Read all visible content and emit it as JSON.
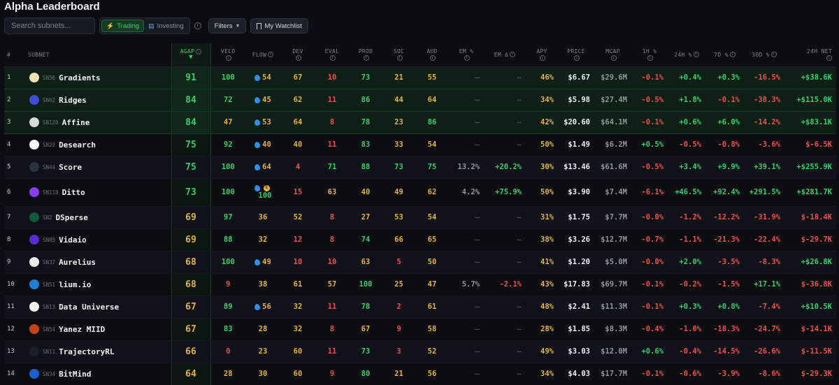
{
  "page": {
    "title": "Alpha Leaderboard"
  },
  "toolbar": {
    "search_placeholder": "Search subnets...",
    "trading_label": "Trading",
    "investing_label": "Investing",
    "filters_label": "Filters",
    "watchlist_label": "My Watchlist"
  },
  "colors": {
    "accent_green": "#2fd06a",
    "warning_yellow": "#e7b13a",
    "negative_red": "#ef4d4d",
    "background": "#0b0d11"
  },
  "columns": [
    "#",
    "SUBNET",
    "AGAP",
    "VELO",
    "FLOW",
    "DEV",
    "EVAL",
    "PROD",
    "SOC",
    "AUD",
    "EM %",
    "EM Δ",
    "APY",
    "PRICE",
    "MCAP",
    "1H %",
    "24H %",
    "7D %",
    "30D %",
    "24H NET"
  ],
  "rows": [
    {
      "rank": "1",
      "sn": "SN56",
      "name": "Gradients",
      "logo_color": "#f4e3b2",
      "agap": "91",
      "velo": "100",
      "flow": "54",
      "dev": "67",
      "eval": "10",
      "prod": "73",
      "soc": "21",
      "aud": "55",
      "em": "—",
      "emd": "—",
      "apy": "46%",
      "price": "$6.67",
      "mcap": "$29.6M",
      "h1": "-0.1%",
      "h24": "+0.4%",
      "d7": "+0.3%",
      "d30": "-16.5%",
      "net": "+$38.6K"
    },
    {
      "rank": "2",
      "sn": "SN62",
      "name": "Ridges",
      "logo_color": "#3b4fd8",
      "agap": "84",
      "velo": "72",
      "flow": "45",
      "dev": "62",
      "eval": "11",
      "prod": "86",
      "soc": "44",
      "aud": "64",
      "em": "—",
      "emd": "—",
      "apy": "34%",
      "price": "$5.98",
      "mcap": "$27.4M",
      "h1": "-0.5%",
      "h24": "+1.8%",
      "d7": "-0.1%",
      "d30": "-38.3%",
      "net": "+$115.0K"
    },
    {
      "rank": "3",
      "sn": "SN120",
      "name": "Affine",
      "logo_color": "#d9d9d9",
      "agap": "84",
      "velo": "47",
      "flow": "53",
      "dev": "64",
      "eval": "8",
      "prod": "78",
      "soc": "23",
      "aud": "86",
      "em": "—",
      "emd": "—",
      "apy": "42%",
      "price": "$20.60",
      "mcap": "$64.1M",
      "h1": "-0.1%",
      "h24": "+0.6%",
      "d7": "+6.0%",
      "d30": "-14.2%",
      "net": "+$83.1K"
    },
    {
      "rank": "4",
      "sn": "SN22",
      "name": "Desearch",
      "logo_color": "#ffffff",
      "agap": "75",
      "velo": "92",
      "flow": "40",
      "dev": "40",
      "eval": "11",
      "prod": "83",
      "soc": "33",
      "aud": "54",
      "em": "—",
      "emd": "—",
      "apy": "50%",
      "price": "$1.49",
      "mcap": "$6.2M",
      "h1": "+0.5%",
      "h24": "-0.5%",
      "d7": "-0.8%",
      "d30": "-3.6%",
      "net": "$-6.5K"
    },
    {
      "rank": "5",
      "sn": "SN44",
      "name": "Score",
      "logo_color": "#2b3340",
      "agap": "75",
      "velo": "100",
      "flow": "64",
      "dev": "4",
      "eval": "71",
      "prod": "88",
      "soc": "73",
      "aud": "75",
      "em": "13.2%",
      "emd": "+20.2%",
      "apy": "30%",
      "price": "$13.46",
      "mcap": "$61.6M",
      "h1": "-0.5%",
      "h24": "+3.4%",
      "d7": "+9.9%",
      "d30": "+39.1%",
      "net": "+$255.9K"
    },
    {
      "rank": "6",
      "sn": "SN118",
      "name": "Ditto",
      "logo_color": "#8a3df0",
      "agap": "73",
      "velo": "100",
      "flow": "100",
      "dev": "15",
      "eval": "63",
      "prod": "40",
      "soc": "49",
      "aud": "62",
      "em": "4.2%",
      "emd": "+75.9%",
      "apy": "50%",
      "price": "$3.90",
      "mcap": "$7.4M",
      "h1": "-6.1%",
      "h24": "+46.5%",
      "d7": "+92.4%",
      "d30": "+291.5%",
      "net": "+$281.7K"
    },
    {
      "rank": "7",
      "sn": "SN2",
      "name": "DSperse",
      "logo_color": "#0f5a3a",
      "agap": "69",
      "velo": "97",
      "flow": "36",
      "dev": "52",
      "eval": "8",
      "prod": "27",
      "soc": "53",
      "aud": "54",
      "em": "—",
      "emd": "—",
      "apy": "31%",
      "price": "$1.75",
      "mcap": "$7.7M",
      "h1": "-0.0%",
      "h24": "-1.2%",
      "d7": "-12.2%",
      "d30": "-31.9%",
      "net": "$-18.4K"
    },
    {
      "rank": "8",
      "sn": "SN85",
      "name": "Vidaio",
      "logo_color": "#5b2bd6",
      "agap": "69",
      "velo": "88",
      "flow": "32",
      "dev": "12",
      "eval": "8",
      "prod": "74",
      "soc": "66",
      "aud": "65",
      "em": "—",
      "emd": "—",
      "apy": "38%",
      "price": "$3.26",
      "mcap": "$12.7M",
      "h1": "-0.7%",
      "h24": "-1.1%",
      "d7": "-21.3%",
      "d30": "-22.4%",
      "net": "$-29.7K"
    },
    {
      "rank": "9",
      "sn": "SN37",
      "name": "Aurelius",
      "logo_color": "#eaeaea",
      "agap": "68",
      "velo": "100",
      "flow": "49",
      "dev": "10",
      "eval": "10",
      "prod": "63",
      "soc": "5",
      "aud": "50",
      "em": "—",
      "emd": "—",
      "apy": "41%",
      "price": "$1.20",
      "mcap": "$5.0M",
      "h1": "-0.0%",
      "h24": "+2.0%",
      "d7": "-3.5%",
      "d30": "-8.3%",
      "net": "+$26.8K"
    },
    {
      "rank": "10",
      "sn": "SN51",
      "name": "lium.io",
      "logo_color": "#1e7fd6",
      "agap": "68",
      "velo": "9",
      "flow": "38",
      "dev": "61",
      "eval": "57",
      "prod": "100",
      "soc": "25",
      "aud": "47",
      "em": "5.7%",
      "emd": "-2.1%",
      "apy": "43%",
      "price": "$17.83",
      "mcap": "$69.7M",
      "h1": "-0.1%",
      "h24": "-0.2%",
      "d7": "-1.5%",
      "d30": "+17.1%",
      "net": "$-36.8K"
    },
    {
      "rank": "11",
      "sn": "SN13",
      "name": "Data Universe",
      "logo_color": "#f3f3f3",
      "agap": "67",
      "velo": "89",
      "flow": "56",
      "dev": "32",
      "eval": "11",
      "prod": "78",
      "soc": "2",
      "aud": "61",
      "em": "—",
      "emd": "—",
      "apy": "48%",
      "price": "$2.41",
      "mcap": "$11.3M",
      "h1": "-0.1%",
      "h24": "+0.3%",
      "d7": "+0.8%",
      "d30": "-7.4%",
      "net": "+$10.5K"
    },
    {
      "rank": "12",
      "sn": "SN54",
      "name": "Yanez MIID",
      "logo_color": "#c4431b",
      "agap": "67",
      "velo": "83",
      "flow": "28",
      "dev": "32",
      "eval": "8",
      "prod": "67",
      "soc": "9",
      "aud": "58",
      "em": "—",
      "emd": "—",
      "apy": "28%",
      "price": "$1.85",
      "mcap": "$8.3M",
      "h1": "-0.4%",
      "h24": "-1.0%",
      "d7": "-18.3%",
      "d30": "-24.7%",
      "net": "$-14.1K"
    },
    {
      "rank": "13",
      "sn": "SN11",
      "name": "TrajectoryRL",
      "logo_color": "#1a1f28",
      "agap": "66",
      "velo": "0",
      "flow": "23",
      "dev": "60",
      "eval": "11",
      "prod": "73",
      "soc": "3",
      "aud": "52",
      "em": "—",
      "emd": "—",
      "apy": "49%",
      "price": "$3.03",
      "mcap": "$12.0M",
      "h1": "+0.6%",
      "h24": "-0.4%",
      "d7": "-14.5%",
      "d30": "-26.6%",
      "net": "$-11.5K"
    },
    {
      "rank": "14",
      "sn": "SN34",
      "name": "BitMind",
      "logo_color": "#1e5fd0",
      "agap": "64",
      "velo": "28",
      "flow": "30",
      "dev": "60",
      "eval": "9",
      "prod": "80",
      "soc": "21",
      "aud": "56",
      "em": "—",
      "emd": "—",
      "apy": "34%",
      "price": "$4.03",
      "mcap": "$17.7M",
      "h1": "-0.1%",
      "h24": "-0.6%",
      "d7": "-3.9%",
      "d30": "-8.6%",
      "net": "$-29.3K"
    }
  ]
}
